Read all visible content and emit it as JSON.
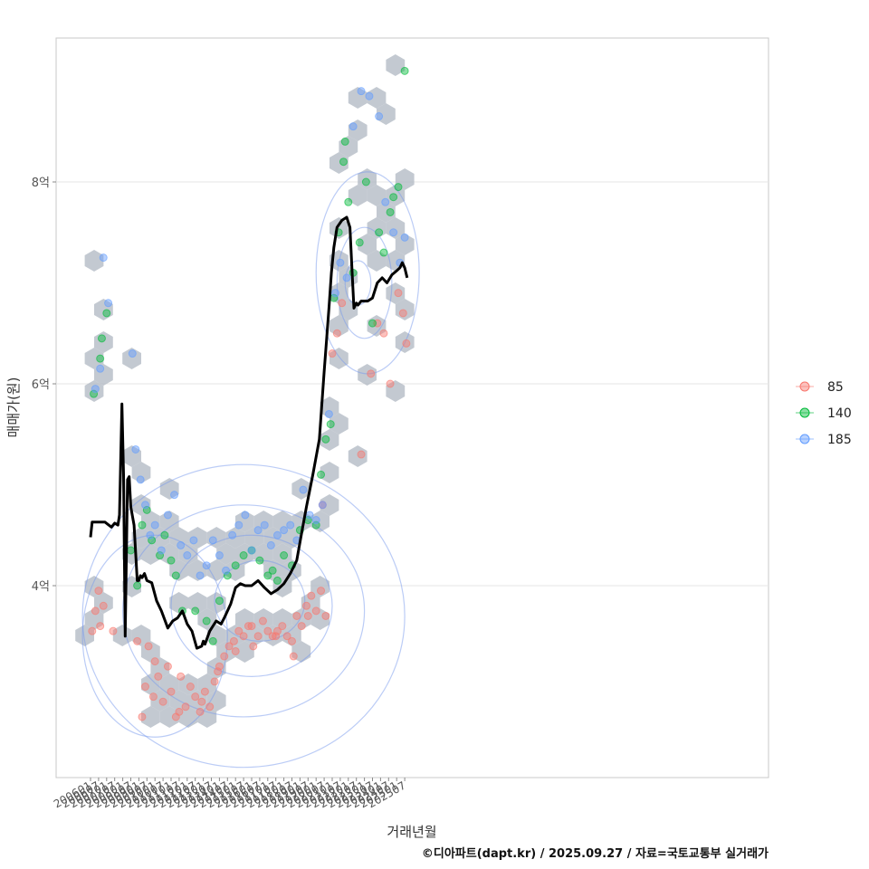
{
  "chart_data": {
    "type": "scatter",
    "title": "",
    "xlabel": "거래년월",
    "ylabel": "매매가(원)",
    "caption": "©디아파트(dapt.kr) / 2025.09.27 / 자료=국토교통부 실거래가",
    "ylim": [
      2.1,
      9.5
    ],
    "y_ticks": [
      {
        "value": 4,
        "label": "4억"
      },
      {
        "value": 6,
        "label": "6억"
      },
      {
        "value": 8,
        "label": "8억"
      }
    ],
    "x_ticks": [
      "200601",
      "200607",
      "200701",
      "200707",
      "200801",
      "200807",
      "200901",
      "200907",
      "201001",
      "201007",
      "201101",
      "201107",
      "201201",
      "201207",
      "201301",
      "201307",
      "201401",
      "201407",
      "201501",
      "201507",
      "201601",
      "201607",
      "201701",
      "201707",
      "201801",
      "201807",
      "201901",
      "201907",
      "202001",
      "202007",
      "202101",
      "202107",
      "202201",
      "202207",
      "202301",
      "202307",
      "202401",
      "202407",
      "202501",
      "202507"
    ],
    "legend": {
      "position": "right",
      "entries": [
        {
          "label": "85",
          "color": "#F8766D"
        },
        {
          "label": "140",
          "color": "#00BA38"
        },
        {
          "label": "185",
          "color": "#619CFF"
        }
      ]
    },
    "hexbin_color": "#b4bcc6",
    "contour_color": "#7799ee",
    "trend_line": {
      "name": "moving average",
      "x": [
        2006.0,
        2006.1,
        2006.4,
        2006.9,
        2007.3,
        2007.5,
        2007.7,
        2007.8,
        2007.95,
        2008.05,
        2008.15,
        2008.3,
        2008.4,
        2008.5,
        2008.7,
        2008.9,
        2009.0,
        2009.1,
        2009.2,
        2009.35,
        2009.5,
        2009.8,
        2010.1,
        2010.4,
        2010.8,
        2011.1,
        2011.4,
        2011.7,
        2012.0,
        2012.3,
        2012.6,
        2012.9,
        2013.0,
        2013.1,
        2013.4,
        2013.8,
        2014.1,
        2014.3,
        2014.7,
        2015.0,
        2015.3,
        2015.6,
        2016.0,
        2016.4,
        2016.8,
        2017.2,
        2017.6,
        2018.0,
        2018.4,
        2018.8,
        2019.1,
        2019.4,
        2019.8,
        2020.2,
        2020.5,
        2020.8,
        2020.95,
        2021.1,
        2021.3,
        2021.6,
        2021.9,
        2022.1,
        2022.25,
        2022.35,
        2022.5,
        2022.6,
        2022.8,
        2023.2,
        2023.5,
        2023.8,
        2024.1,
        2024.4,
        2024.7,
        2025.0,
        2025.2,
        2025.35,
        2025.5,
        2025.65
      ],
      "values": [
        4.48,
        4.63,
        4.63,
        4.63,
        4.58,
        4.62,
        4.6,
        4.7,
        5.8,
        5.1,
        3.5,
        5.05,
        5.08,
        4.78,
        4.6,
        4.05,
        4.05,
        4.1,
        4.08,
        4.12,
        4.05,
        4.03,
        3.85,
        3.75,
        3.58,
        3.65,
        3.68,
        3.75,
        3.62,
        3.55,
        3.38,
        3.4,
        3.45,
        3.42,
        3.55,
        3.65,
        3.62,
        3.68,
        3.82,
        3.98,
        4.02,
        4.0,
        4.0,
        4.05,
        3.98,
        3.92,
        3.96,
        4.02,
        4.12,
        4.25,
        4.52,
        4.78,
        5.1,
        5.45,
        6.12,
        6.75,
        7.1,
        7.35,
        7.55,
        7.62,
        7.65,
        7.55,
        7.05,
        6.75,
        6.8,
        6.78,
        6.82,
        6.82,
        6.85,
        7.0,
        7.05,
        7.0,
        7.08,
        7.12,
        7.15,
        7.2,
        7.15,
        7.05
      ]
    },
    "series": [
      {
        "name": "85",
        "x": [
          2006.1,
          2006.3,
          2006.5,
          2006.6,
          2006.8,
          2007.4,
          2008.9,
          2009.2,
          2009.6,
          2009.9,
          2010.2,
          2010.5,
          2010.8,
          2011.0,
          2011.3,
          2011.6,
          2011.9,
          2012.2,
          2012.5,
          2012.8,
          2013.1,
          2013.4,
          2013.7,
          2014.0,
          2014.3,
          2014.6,
          2014.9,
          2015.2,
          2015.5,
          2015.8,
          2016.1,
          2016.4,
          2016.7,
          2017.0,
          2017.3,
          2017.6,
          2017.9,
          2018.2,
          2018.5,
          2018.8,
          2019.1,
          2019.4,
          2019.7,
          2020.0,
          2020.3,
          2020.6,
          2021.0,
          2021.3,
          2021.6,
          2022.8,
          2023.4,
          2023.8,
          2024.2,
          2024.6,
          2025.1,
          2025.4,
          2025.6,
          2009.4,
          2010.0,
          2011.5,
          2012.9,
          2013.9,
          2015.0,
          2016.0,
          2017.5,
          2018.6,
          2019.5,
          2020.4
        ],
        "values": [
          3.55,
          3.75,
          3.95,
          3.6,
          3.8,
          3.55,
          3.45,
          2.7,
          3.4,
          2.9,
          3.1,
          2.85,
          3.2,
          2.95,
          2.7,
          3.1,
          2.8,
          3.0,
          2.9,
          2.75,
          2.95,
          2.8,
          3.05,
          3.2,
          3.3,
          3.4,
          3.45,
          3.55,
          3.5,
          3.6,
          3.4,
          3.5,
          3.65,
          3.55,
          3.5,
          3.55,
          3.6,
          3.5,
          3.45,
          3.7,
          3.6,
          3.8,
          3.9,
          3.75,
          3.95,
          3.7,
          6.3,
          6.5,
          6.8,
          5.3,
          6.1,
          6.6,
          6.5,
          6.0,
          6.9,
          6.7,
          6.4,
          3.0,
          3.25,
          2.75,
          2.85,
          3.15,
          3.35,
          3.6,
          3.5,
          3.3,
          3.7,
          4.8
        ]
      },
      {
        "name": "140",
        "x": [
          2006.2,
          2006.6,
          2006.7,
          2007.0,
          2008.5,
          2008.9,
          2009.2,
          2009.5,
          2009.8,
          2010.3,
          2010.6,
          2011.0,
          2011.3,
          2011.7,
          2012.5,
          2013.2,
          2013.6,
          2014.0,
          2014.5,
          2015.0,
          2015.5,
          2016.0,
          2016.5,
          2017.0,
          2017.3,
          2017.6,
          2018.0,
          2018.5,
          2019.0,
          2019.5,
          2020.0,
          2020.3,
          2020.6,
          2020.9,
          2021.1,
          2021.4,
          2021.7,
          2021.8,
          2022.0,
          2022.3,
          2022.7,
          2023.1,
          2023.5,
          2023.9,
          2024.2,
          2024.6,
          2024.8,
          2025.1,
          2025.5
        ],
        "values": [
          5.9,
          6.25,
          6.45,
          6.7,
          4.35,
          4.0,
          4.6,
          4.75,
          4.45,
          4.3,
          4.5,
          4.25,
          4.1,
          3.75,
          3.75,
          3.65,
          3.45,
          3.85,
          4.1,
          4.2,
          4.3,
          4.35,
          4.25,
          4.1,
          4.15,
          4.05,
          4.3,
          4.2,
          4.55,
          4.65,
          4.6,
          5.1,
          5.45,
          5.6,
          6.85,
          7.5,
          8.2,
          8.4,
          7.8,
          7.1,
          7.4,
          8.0,
          6.6,
          7.5,
          7.3,
          7.7,
          7.85,
          7.95,
          9.1
        ]
      },
      {
        "name": "185",
        "x": [
          2006.3,
          2006.6,
          2006.8,
          2007.1,
          2008.6,
          2008.8,
          2009.1,
          2009.4,
          2009.7,
          2010.0,
          2010.4,
          2010.8,
          2011.2,
          2011.6,
          2012.0,
          2012.4,
          2012.8,
          2013.2,
          2013.6,
          2014.0,
          2014.4,
          2014.8,
          2015.2,
          2015.6,
          2016.0,
          2016.4,
          2016.8,
          2017.2,
          2017.6,
          2018.0,
          2018.4,
          2018.8,
          2019.2,
          2019.6,
          2020.0,
          2020.4,
          2020.8,
          2021.2,
          2021.5,
          2021.9,
          2022.3,
          2022.8,
          2023.3,
          2023.9,
          2024.3,
          2024.8,
          2025.2,
          2025.5
        ],
        "values": [
          5.95,
          6.15,
          7.25,
          6.8,
          6.3,
          5.35,
          5.05,
          4.8,
          4.5,
          4.6,
          4.35,
          4.7,
          4.9,
          4.4,
          4.3,
          4.45,
          4.1,
          4.2,
          4.45,
          4.3,
          4.15,
          4.5,
          4.6,
          4.7,
          4.35,
          4.55,
          4.6,
          4.4,
          4.5,
          4.55,
          4.6,
          4.45,
          4.95,
          4.7,
          4.65,
          4.8,
          5.7,
          6.9,
          7.2,
          7.05,
          8.55,
          8.9,
          8.85,
          8.65,
          7.8,
          7.5,
          7.2,
          7.45
        ]
      }
    ]
  }
}
